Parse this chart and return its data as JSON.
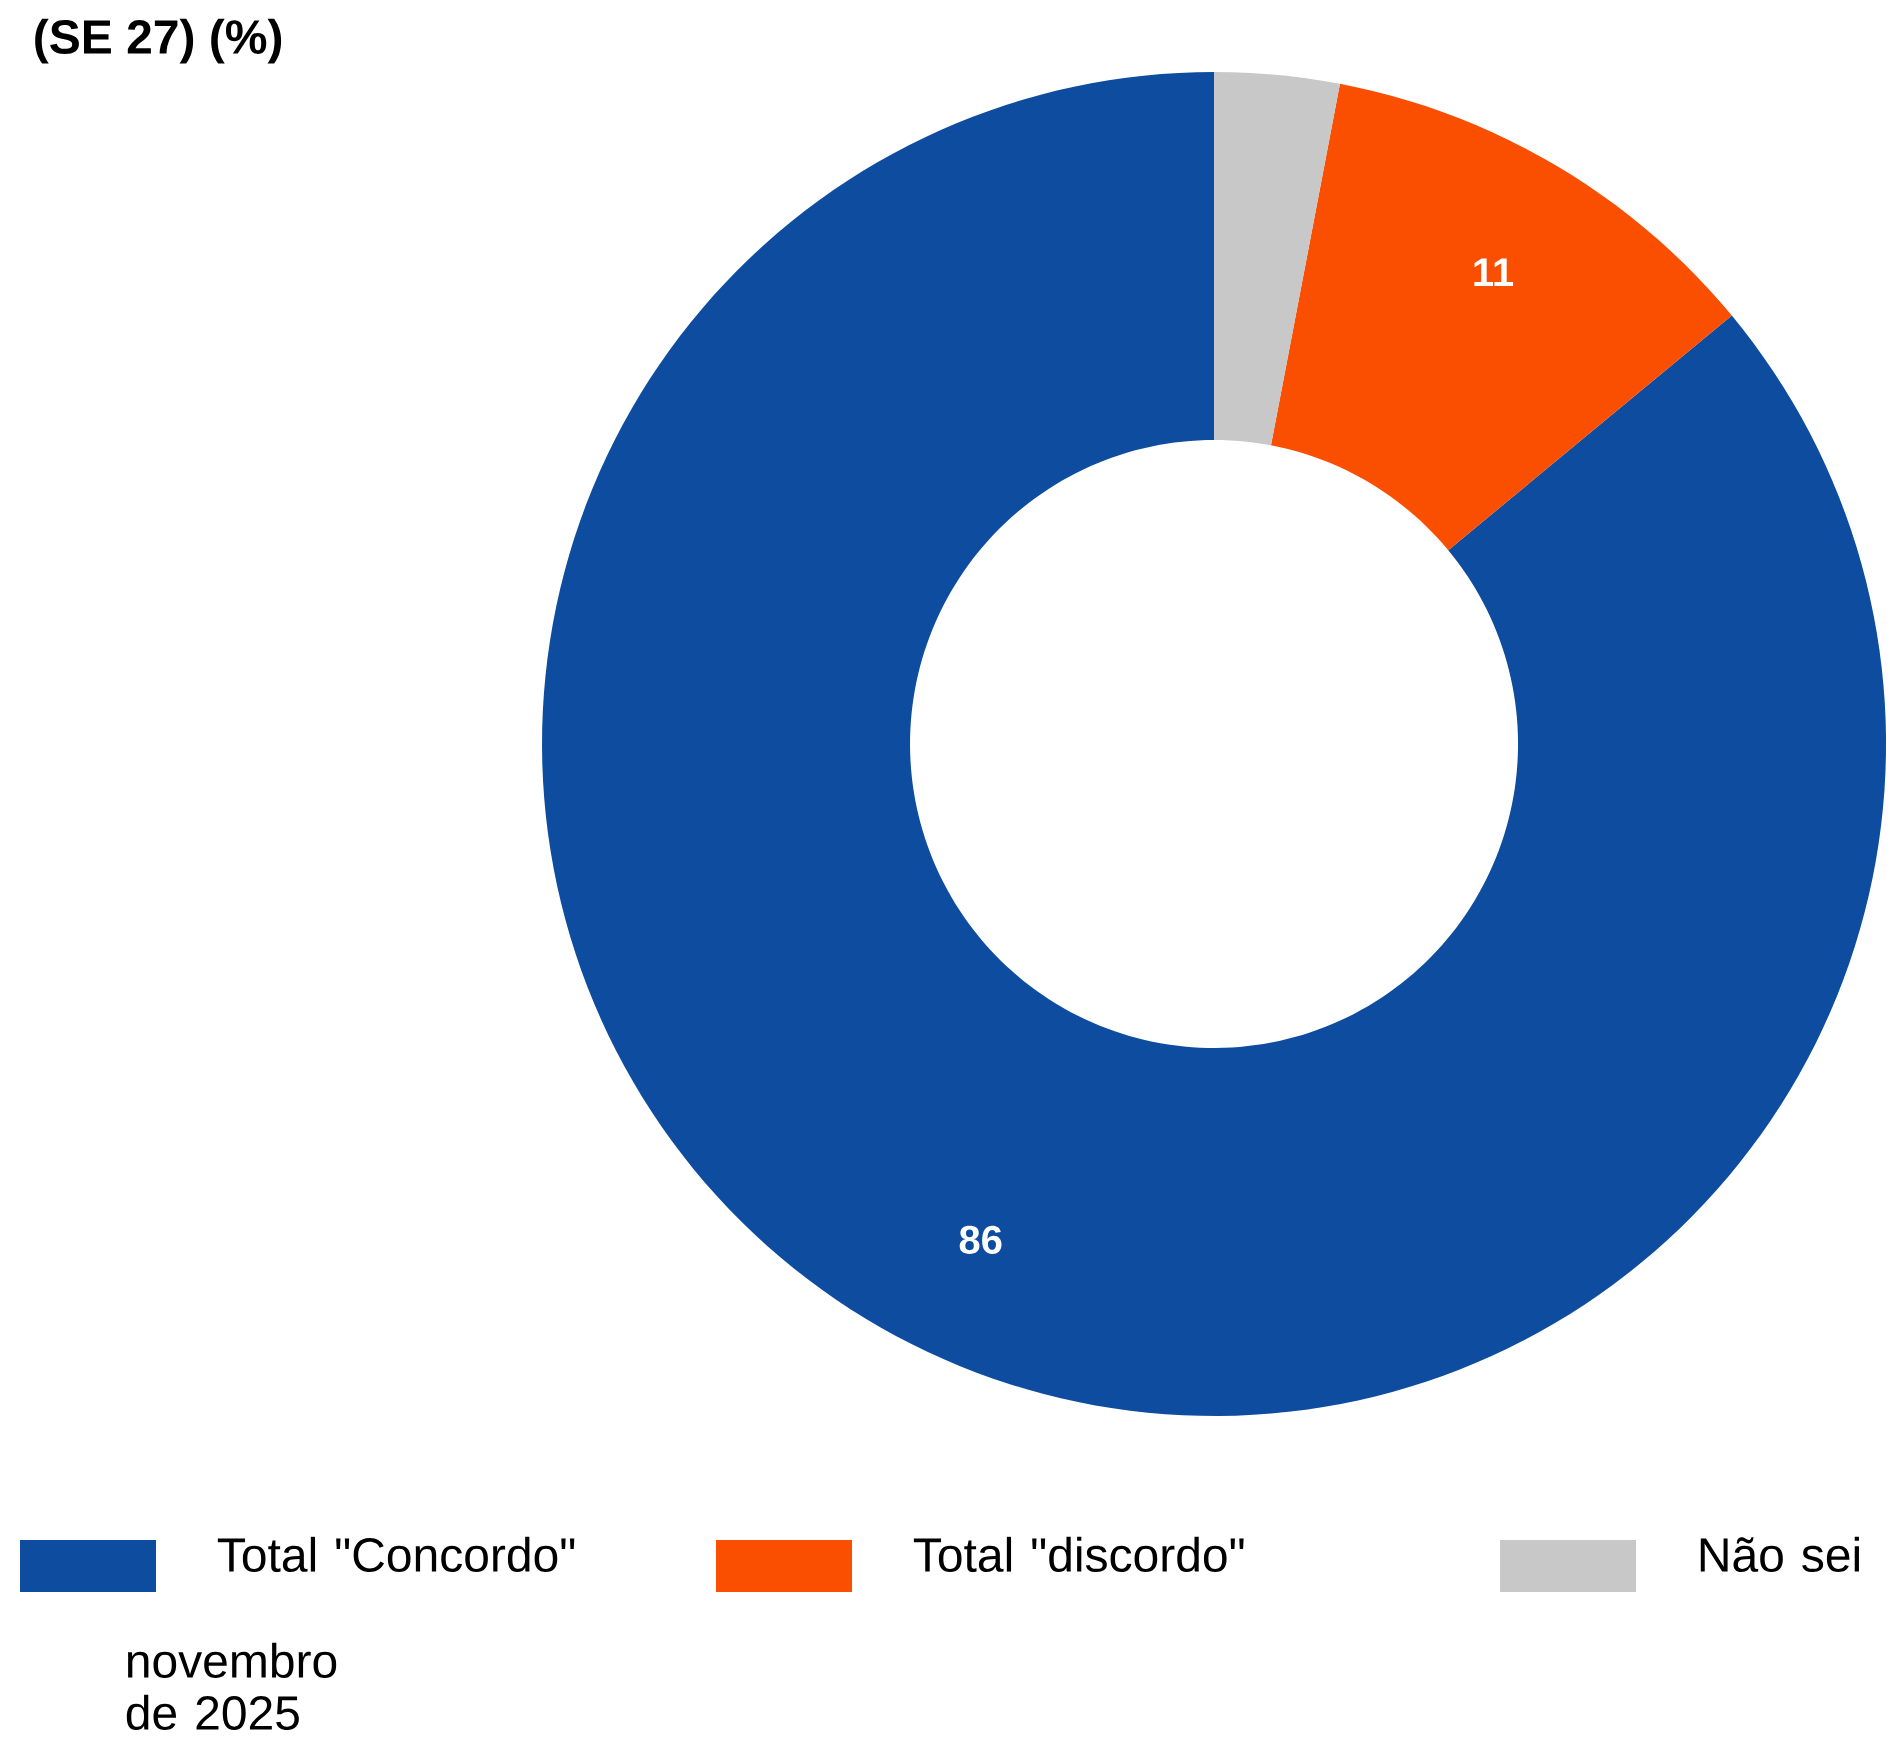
{
  "chart_data": {
    "type": "donut",
    "title": "(SE 27) (%)",
    "categories": [
      "Total \"Concordo\"",
      "Total \"discordo\"",
      "Não sei"
    ],
    "values": [
      86,
      11,
      3
    ],
    "colors": [
      "#0d4c9e",
      "#fa4f00",
      "#c8c8c8"
    ],
    "value_labels": [
      "86",
      "11",
      null
    ],
    "legend": "bottom",
    "annotations": [
      "novembro de 2025"
    ]
  }
}
